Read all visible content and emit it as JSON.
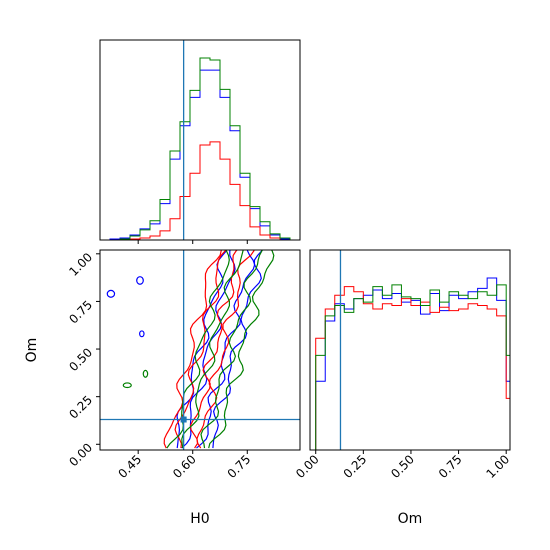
{
  "chart_data": {
    "type": "corner",
    "parameters": [
      "H0",
      "Om"
    ],
    "truths": {
      "H0": 0.575,
      "Om": 0.13
    },
    "truth_color": "#1f77b4",
    "ranges": {
      "H0": [
        0.345,
        0.895
      ],
      "Om": [
        -0.03,
        1.02
      ]
    },
    "ticks": {
      "H0": {
        "values": [
          0.45,
          0.6,
          0.75
        ],
        "labels": [
          "0.45",
          "0.60",
          "0.75"
        ]
      },
      "Om": {
        "values": [
          0.0,
          0.25,
          0.5,
          0.75,
          1.0
        ],
        "labels": [
          "0.00",
          "0.25",
          "0.50",
          "0.75",
          "1.00"
        ]
      }
    },
    "series": [
      {
        "color": "#0000ff"
      },
      {
        "color": "#ff0000"
      },
      {
        "color": "#008000"
      }
    ],
    "hist_H0": {
      "edges": [
        0.345,
        0.3725,
        0.4,
        0.4275,
        0.455,
        0.4825,
        0.51,
        0.5375,
        0.565,
        0.5925,
        0.62,
        0.6475,
        0.675,
        0.7025,
        0.73,
        0.7575,
        0.785,
        0.8125,
        0.84,
        0.8675,
        0.895
      ],
      "counts": [
        [
          0,
          1,
          2,
          5,
          11,
          16,
          36,
          80,
          113,
          141,
          168,
          168,
          141,
          108,
          62,
          31,
          14,
          5,
          1,
          0
        ],
        [
          0,
          0,
          0,
          1,
          2,
          4,
          9,
          21,
          43,
          66,
          94,
          97,
          80,
          55,
          34,
          13,
          5,
          2,
          0,
          0
        ],
        [
          0,
          0,
          1,
          4,
          10,
          19,
          40,
          88,
          117,
          148,
          180,
          178,
          149,
          113,
          66,
          33,
          18,
          6,
          2,
          0
        ]
      ]
    },
    "hist_Om": {
      "edges": [
        -0.03,
        0.0,
        0.05,
        0.1,
        0.15,
        0.2,
        0.25,
        0.3,
        0.35,
        0.4,
        0.45,
        0.5,
        0.55,
        0.6,
        0.65,
        0.7,
        0.75,
        0.8,
        0.85,
        0.9,
        0.95,
        1.0,
        1.02
      ],
      "counts": [
        [
          0,
          40,
          75,
          85,
          82,
          88,
          90,
          93,
          88,
          91,
          86,
          87,
          79,
          91,
          81,
          90,
          88,
          92,
          94,
          100,
          87,
          40
        ],
        [
          0,
          65,
          82,
          90,
          95,
          92,
          85,
          82,
          85,
          84,
          88,
          84,
          86,
          80,
          83,
          81,
          82,
          85,
          84,
          82,
          78,
          30
        ],
        [
          0,
          55,
          78,
          84,
          80,
          88,
          86,
          95,
          90,
          96,
          89,
          88,
          84,
          93,
          86,
          92,
          90,
          88,
          92,
          90,
          96,
          55
        ]
      ]
    }
  }
}
